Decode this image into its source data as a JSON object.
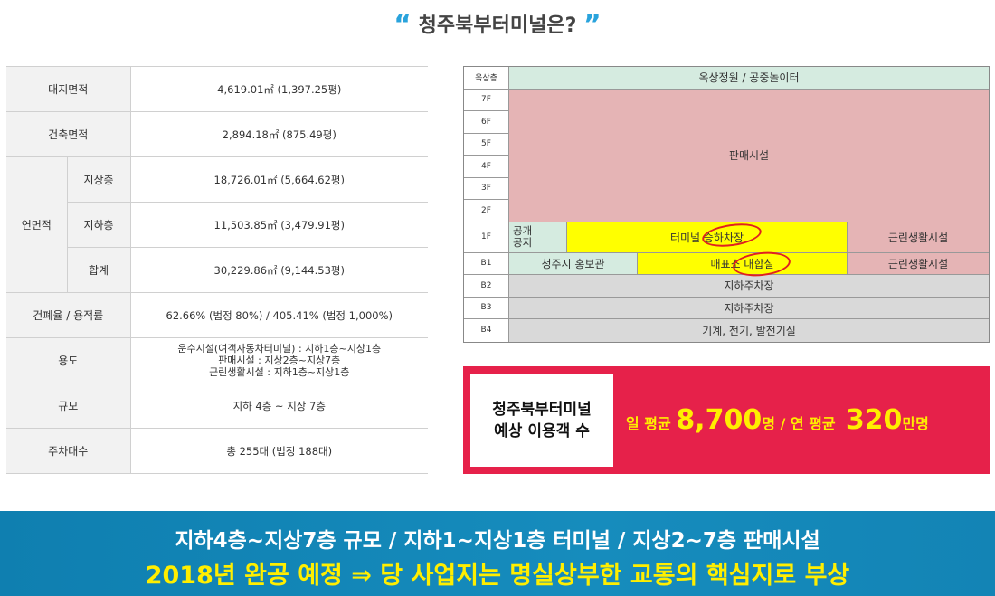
{
  "header": {
    "title": "청주북부터미널은?",
    "open_quote": "“",
    "close_quote": "”"
  },
  "spec_table": {
    "site_area_label": "대지면적",
    "site_area_value": "4,619.01㎡ (1,397.25평)",
    "building_area_label": "건축면적",
    "building_area_value": "2,894.18㎡ (875.49평)",
    "gross_area_label": "연면적",
    "above_label": "지상층",
    "above_value": "18,726.01㎡ (5,664.62평)",
    "below_label": "지하층",
    "below_value": "11,503.85㎡ (3,479.91평)",
    "total_label": "합계",
    "total_value": "30,229.86㎡ (9,144.53평)",
    "ratio_label": "건폐율 / 용적률",
    "ratio_value": "62.66% (법정 80%)  /  405.41% (법정 1,000%)",
    "usage_label": "용도",
    "usage_line1": "운수시설(여객자동차터미널) : 지하1층~지상1층",
    "usage_line2": "판매시설 : 지상2층~지상7층",
    "usage_line3": "근린생활시설 : 지하1층~지상1층",
    "scale_label": "규모",
    "scale_value": "지하 4층 ~ 지상 7층",
    "parking_label": "주차대수",
    "parking_value": "총 255대 (법정 188대)"
  },
  "building": {
    "rooftop_floor": "옥상층",
    "rooftop_use": "옥상정원 / 공중놀이터",
    "floors_mid": [
      "7F",
      "6F",
      "5F",
      "4F",
      "3F",
      "2F"
    ],
    "sales_use": "판매시설",
    "f1": "1F",
    "f1_open": "공개\n공지",
    "f1_terminal": "터미널 승하차장",
    "f1_retail": "근린생활시설",
    "b1": "B1",
    "b1_promo": "청주시 홍보관",
    "b1_ticket": "매표소 대합실",
    "b1_retail": "근린생활시설",
    "b2": "B2",
    "b2_use": "지하주차장",
    "b3": "B3",
    "b3_use": "지하주차장",
    "b4": "B4",
    "b4_use": "기계, 전기, 발전기실"
  },
  "visitors": {
    "label_line1": "청주북부터미널",
    "label_line2": "예상 이용객 수",
    "daily_prefix": "일 평균 ",
    "daily_value": "8,700",
    "daily_unit": "명 / 연 평균 ",
    "yearly_value": "320",
    "yearly_unit": "만명"
  },
  "banner": {
    "line1": "지하4층~지상7층 규모 / 지하1~지상1층 터미널 / 지상2~7층 판매시설",
    "line2": "2018년 완공 예정 ⇒ 당 사업지는 명실상부한 교통의 핵심지로 부상"
  },
  "colors": {
    "accent_blue": "#29a3dc",
    "pink_box": "#e6214a",
    "highlight_yellow": "#ffee00",
    "banner_blue": "#168cbd"
  }
}
